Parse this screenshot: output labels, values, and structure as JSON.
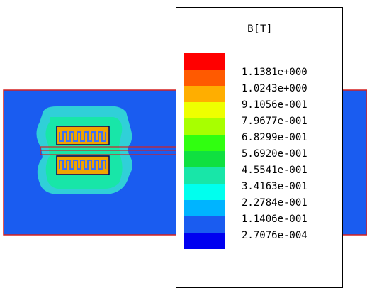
{
  "colors": {
    "background": "#ffffff",
    "domain_fill": "#1a5cf0",
    "domain_border": "#d42020",
    "coil_outline": "#000060",
    "field_halo_outer": "#30d0d8",
    "field_halo_mid": "#18e6a8",
    "field_core": "#f0a400",
    "coil_teeth": "#4070f0"
  },
  "legend": {
    "title": "B[T]",
    "swatch_colors": [
      "#ff0000",
      "#ff5a00",
      "#ffae00",
      "#eeff00",
      "#a8ff00",
      "#30ff10",
      "#10e040",
      "#18e6a8",
      "#00ffee",
      "#00b4ff",
      "#1a5cf0",
      "#0000f0"
    ],
    "values": [
      "1.1381e+000",
      "1.0243e+000",
      "9.1056e-001",
      "7.9677e-001",
      "6.8299e-001",
      "5.6920e-001",
      "4.5541e-001",
      "3.4163e-001",
      "2.2784e-001",
      "1.1406e-001",
      "2.7076e-004"
    ]
  }
}
